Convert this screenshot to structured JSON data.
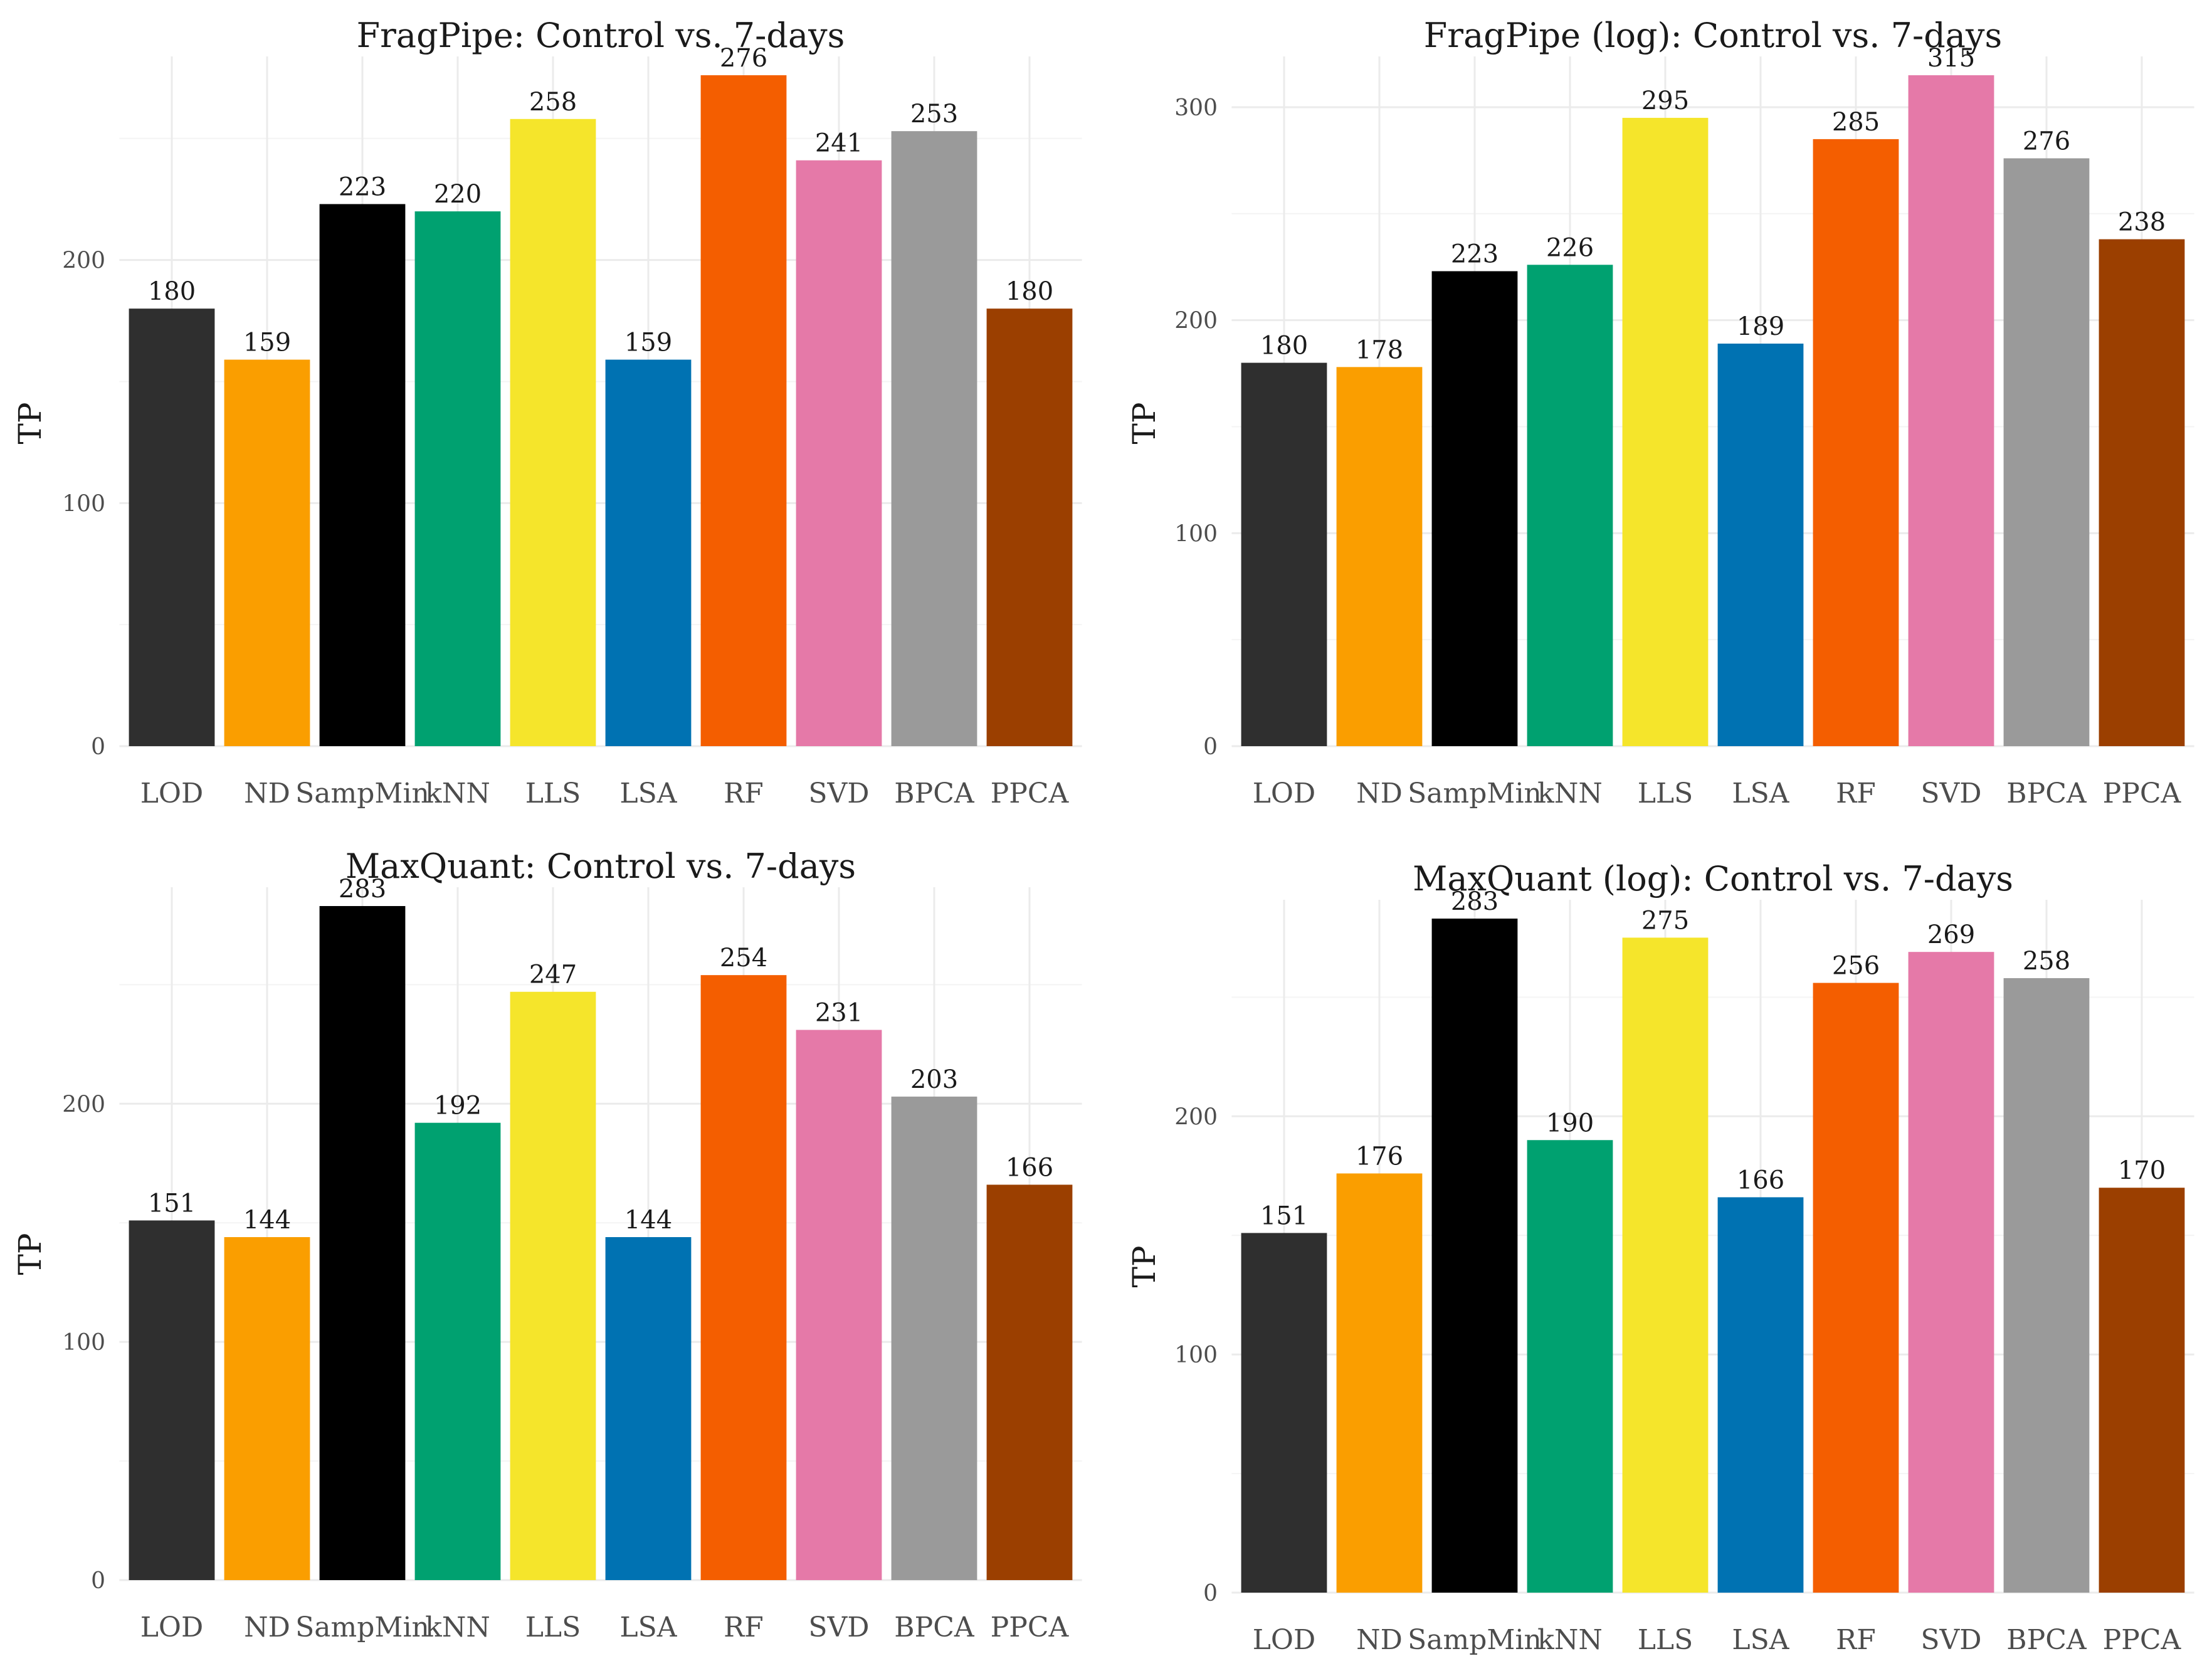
{
  "colors": {
    "LOD": "#2f2f2f",
    "ND": "#fa9e00",
    "SampMinkNN": "#00b0ea",
    "kNN": "#00a170",
    "LLS": "#f5e52b",
    "LSA": "#0072b2",
    "RF": "#f45e00",
    "SVD": "#e579a8",
    "BPCA": "#9a9a9a",
    "PPCA": "#9b3f00"
  },
  "chart_data": [
    {
      "type": "bar",
      "title": "FragPipe: Control vs. 7-days",
      "ylabel": "TP",
      "xlabel": "",
      "categories": [
        "LOD",
        "ND",
        "SampMin",
        "kNN",
        "LLS",
        "LSA",
        "RF",
        "SVD",
        "BPCA",
        "PPCA"
      ],
      "values": [
        180,
        159,
        223,
        220,
        258,
        159,
        276,
        241,
        253,
        180
      ],
      "ylim": [
        0,
        276
      ],
      "yticks": [
        0,
        100,
        200
      ],
      "grid": true
    },
    {
      "type": "bar",
      "title": "FragPipe (log): Control vs. 7-days",
      "ylabel": "TP",
      "xlabel": "",
      "categories": [
        "LOD",
        "ND",
        "SampMin",
        "kNN",
        "LLS",
        "LSA",
        "RF",
        "SVD",
        "BPCA",
        "PPCA"
      ],
      "values": [
        180,
        178,
        223,
        226,
        295,
        189,
        285,
        315,
        276,
        238
      ],
      "ylim": [
        0,
        315
      ],
      "yticks": [
        0,
        100,
        200,
        300
      ],
      "grid": true
    },
    {
      "type": "bar",
      "title": "MaxQuant: Control vs. 7-days",
      "ylabel": "TP",
      "xlabel": "",
      "categories": [
        "LOD",
        "ND",
        "SampMin",
        "kNN",
        "LLS",
        "LSA",
        "RF",
        "SVD",
        "BPCA",
        "PPCA"
      ],
      "values": [
        151,
        144,
        283,
        192,
        247,
        144,
        254,
        231,
        203,
        166
      ],
      "ylim": [
        0,
        283
      ],
      "yticks": [
        0,
        100,
        200
      ],
      "grid": true
    },
    {
      "type": "bar",
      "title": "MaxQuant (log): Control vs. 7-days",
      "ylabel": "TP",
      "xlabel": "",
      "categories": [
        "LOD",
        "ND",
        "SampMin",
        "kNN",
        "LLS",
        "LSA",
        "RF",
        "SVD",
        "BPCA",
        "PPCA"
      ],
      "values": [
        151,
        176,
        283,
        190,
        275,
        166,
        256,
        269,
        258,
        170
      ],
      "ylim": [
        0,
        283
      ],
      "yticks": [
        0,
        100,
        200
      ],
      "grid": true
    }
  ]
}
